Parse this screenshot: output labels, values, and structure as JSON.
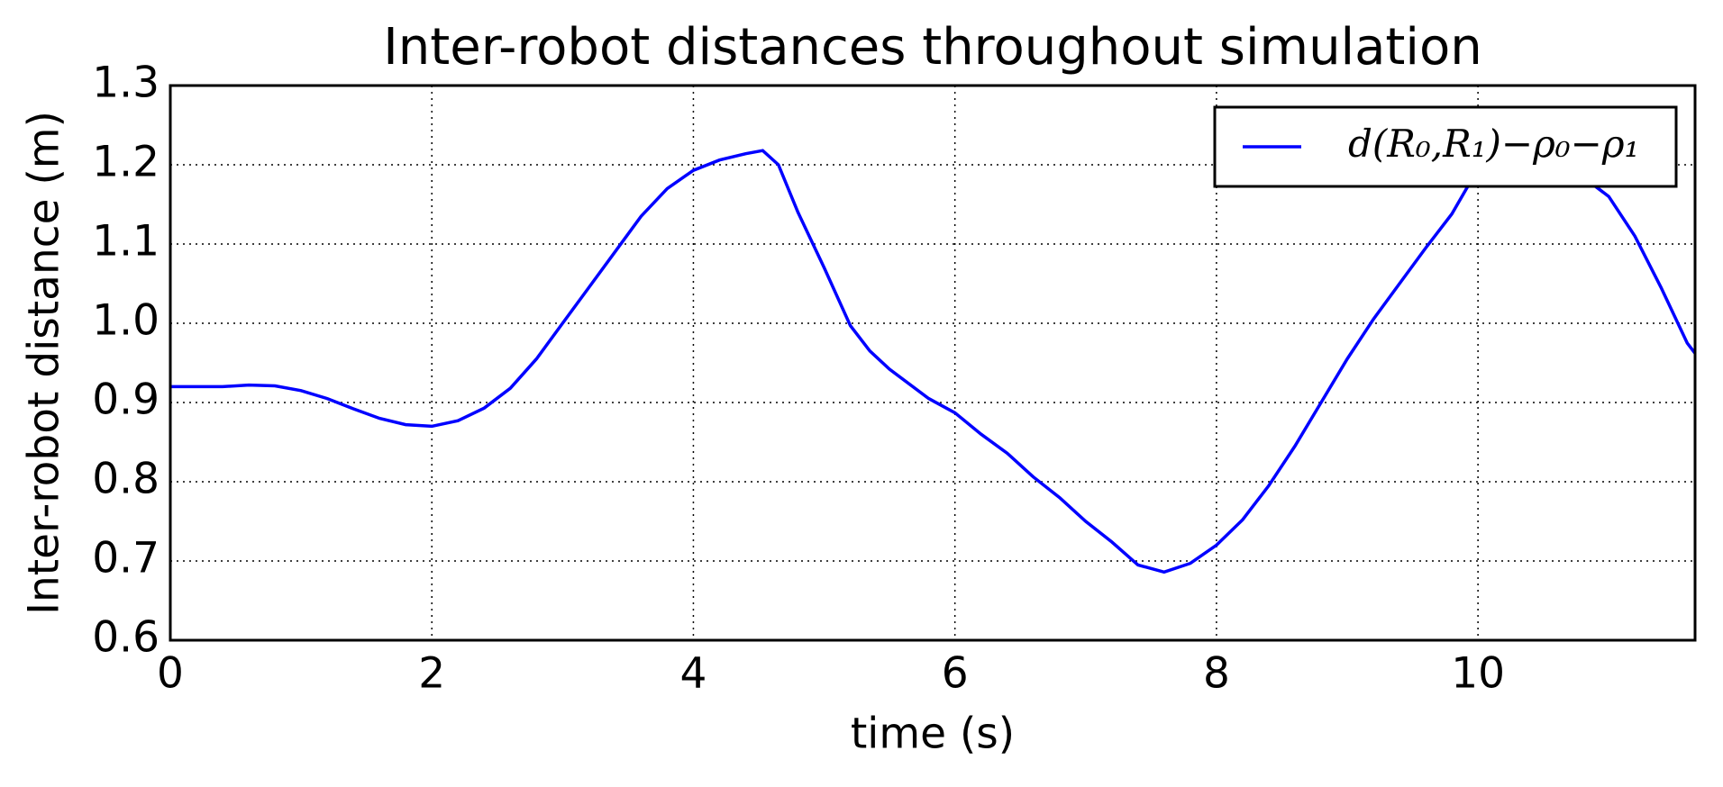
{
  "chart_data": {
    "type": "line",
    "title": "Inter-robot distances throughout simulation",
    "x_label": "time (s)",
    "y_label": "Inter-robot distance (m)",
    "x": [
      0,
      0.4,
      0.6,
      0.8,
      1.0,
      1.2,
      1.4,
      1.6,
      1.8,
      2.0,
      2.2,
      2.4,
      2.6,
      2.8,
      3.0,
      3.2,
      3.4,
      3.6,
      3.8,
      4.0,
      4.2,
      4.4,
      4.53,
      4.65,
      4.8,
      5.0,
      5.2,
      5.35,
      5.5,
      5.8,
      6.0,
      6.2,
      6.4,
      6.6,
      6.8,
      7.0,
      7.2,
      7.4,
      7.6,
      7.8,
      8.0,
      8.2,
      8.4,
      8.6,
      8.8,
      9.0,
      9.2,
      9.4,
      9.6,
      9.8,
      10.0,
      10.2,
      10.4,
      10.6,
      10.8,
      11.0,
      11.2,
      11.4,
      11.6,
      11.66
    ],
    "series": [
      {
        "name": "d(R₀,R₁)−ρ₀−ρ₁",
        "color": "#0000ff",
        "values": [
          0.92,
          0.92,
          0.922,
          0.921,
          0.915,
          0.905,
          0.892,
          0.88,
          0.872,
          0.87,
          0.877,
          0.893,
          0.918,
          0.955,
          1.0,
          1.045,
          1.09,
          1.135,
          1.17,
          1.193,
          1.206,
          1.214,
          1.218,
          1.2,
          1.14,
          1.07,
          0.997,
          0.965,
          0.942,
          0.905,
          0.887,
          0.86,
          0.836,
          0.806,
          0.78,
          0.75,
          0.724,
          0.695,
          0.686,
          0.697,
          0.72,
          0.752,
          0.795,
          0.845,
          0.9,
          0.955,
          1.005,
          1.05,
          1.095,
          1.138,
          1.195,
          1.215,
          1.22,
          1.21,
          1.185,
          1.16,
          1.11,
          1.045,
          0.975,
          0.962
        ]
      }
    ],
    "xlim": [
      0,
      11.66
    ],
    "ylim": [
      0.6,
      1.3
    ],
    "xticks": [
      0,
      2,
      4,
      6,
      8,
      10
    ],
    "yticks": [
      0.6,
      0.7,
      0.8,
      0.9,
      {
        "value": 1.0,
        "label": "1.0"
      },
      1.1,
      1.2,
      1.3
    ],
    "grid": true,
    "legend": "upper right"
  }
}
